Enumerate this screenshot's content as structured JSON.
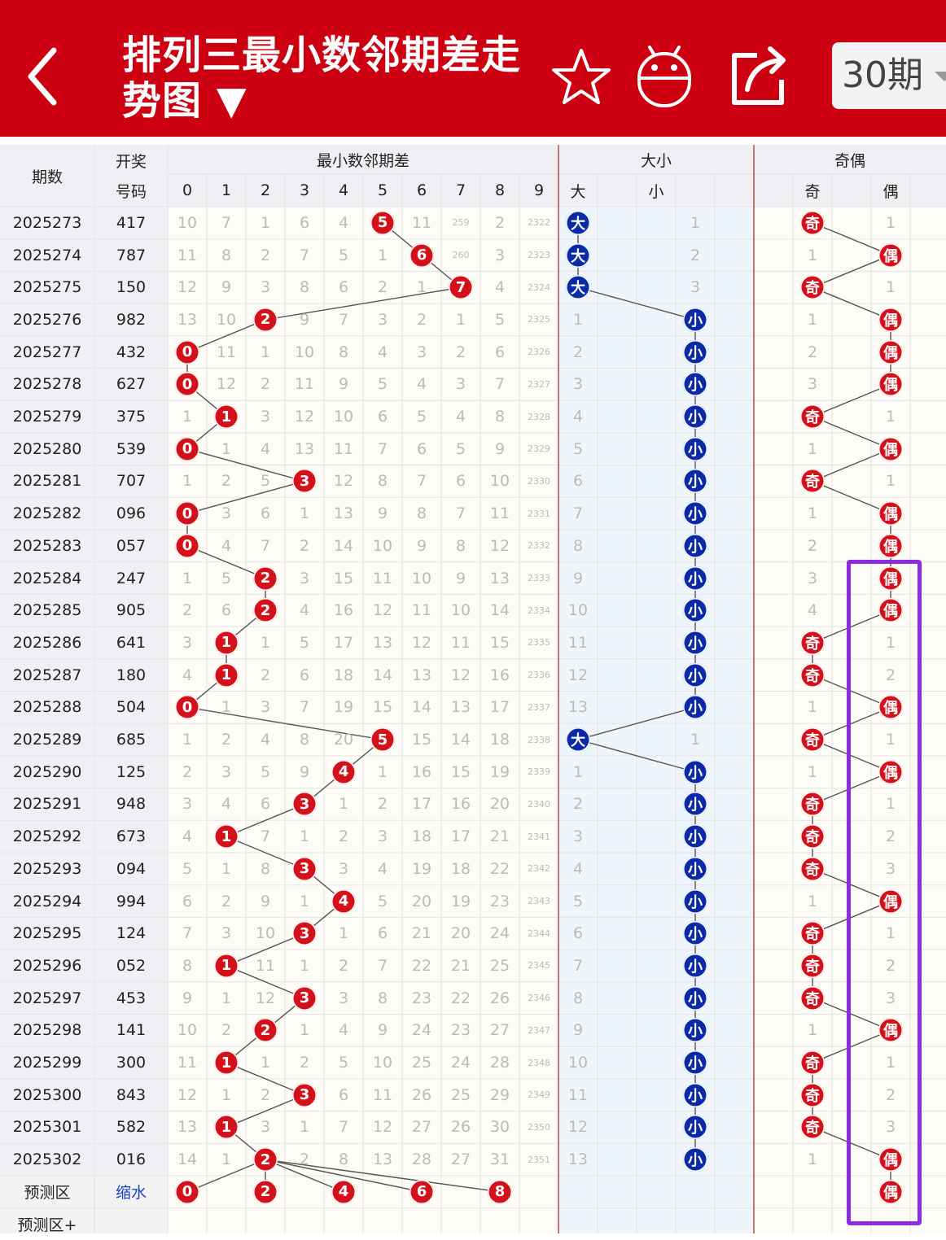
{
  "header": {
    "title": "排列三最小数邻期差走势图 ▼",
    "period_label": "30期",
    "icons": [
      "back-arrow-icon",
      "star-icon",
      "robot-icon",
      "share-icon",
      "chevron-down-icon"
    ]
  },
  "columns": {
    "period": "期数",
    "number_top": "开奖",
    "number_bottom": "号码",
    "section_diff": "最小数邻期差",
    "section_size": "大小",
    "section_parity": "奇偶",
    "digits": [
      "0",
      "1",
      "2",
      "3",
      "4",
      "5",
      "6",
      "7",
      "8",
      "9"
    ],
    "size": [
      "大",
      "小"
    ],
    "parity": [
      "奇",
      "偶"
    ]
  },
  "colors": {
    "header": "#cc0011",
    "ball_red": "#d4101a",
    "ball_blue": "#0b2aa8",
    "highlight": "#8b2be2"
  },
  "rows": [
    {
      "period": "2025273",
      "number": "417",
      "diff": [
        "10",
        "7",
        "1",
        "6",
        "4",
        "5",
        "11",
        "259",
        "2",
        "2322"
      ],
      "hit": 5,
      "size_cells": [
        "大",
        "1"
      ],
      "big": true,
      "parity_cells": [
        "奇",
        "1"
      ],
      "odd": true
    },
    {
      "period": "2025274",
      "number": "787",
      "diff": [
        "11",
        "8",
        "2",
        "7",
        "5",
        "1",
        "6",
        "260",
        "3",
        "2323"
      ],
      "hit": 6,
      "size_cells": [
        "大",
        "2"
      ],
      "big": true,
      "parity_cells": [
        "1",
        "偶"
      ],
      "odd": false
    },
    {
      "period": "2025275",
      "number": "150",
      "diff": [
        "12",
        "9",
        "3",
        "8",
        "6",
        "2",
        "1",
        "7",
        "4",
        "2324"
      ],
      "hit": 7,
      "size_cells": [
        "大",
        "3"
      ],
      "big": true,
      "parity_cells": [
        "奇",
        "1"
      ],
      "odd": true
    },
    {
      "period": "2025276",
      "number": "982",
      "diff": [
        "13",
        "10",
        "2",
        "9",
        "7",
        "3",
        "2",
        "1",
        "5",
        "2325"
      ],
      "hit": 2,
      "size_cells": [
        "1",
        "小"
      ],
      "big": false,
      "parity_cells": [
        "1",
        "偶"
      ],
      "odd": false
    },
    {
      "period": "2025277",
      "number": "432",
      "diff": [
        "0",
        "11",
        "1",
        "10",
        "8",
        "4",
        "3",
        "2",
        "6",
        "2326"
      ],
      "hit": 0,
      "size_cells": [
        "2",
        "小"
      ],
      "big": false,
      "parity_cells": [
        "2",
        "偶"
      ],
      "odd": false
    },
    {
      "period": "2025278",
      "number": "627",
      "diff": [
        "0",
        "12",
        "2",
        "11",
        "9",
        "5",
        "4",
        "3",
        "7",
        "2327"
      ],
      "hit": 0,
      "size_cells": [
        "3",
        "小"
      ],
      "big": false,
      "parity_cells": [
        "3",
        "偶"
      ],
      "odd": false
    },
    {
      "period": "2025279",
      "number": "375",
      "diff": [
        "1",
        "1",
        "3",
        "12",
        "10",
        "6",
        "5",
        "4",
        "8",
        "2328"
      ],
      "hit": 1,
      "size_cells": [
        "4",
        "小"
      ],
      "big": false,
      "parity_cells": [
        "奇",
        "1"
      ],
      "odd": true
    },
    {
      "period": "2025280",
      "number": "539",
      "diff": [
        "0",
        "1",
        "4",
        "13",
        "11",
        "7",
        "6",
        "5",
        "9",
        "2329"
      ],
      "hit": 0,
      "size_cells": [
        "5",
        "小"
      ],
      "big": false,
      "parity_cells": [
        "1",
        "偶"
      ],
      "odd": false
    },
    {
      "period": "2025281",
      "number": "707",
      "diff": [
        "1",
        "2",
        "5",
        "3",
        "12",
        "8",
        "7",
        "6",
        "10",
        "2330"
      ],
      "hit": 3,
      "size_cells": [
        "6",
        "小"
      ],
      "big": false,
      "parity_cells": [
        "奇",
        "1"
      ],
      "odd": true
    },
    {
      "period": "2025282",
      "number": "096",
      "diff": [
        "0",
        "3",
        "6",
        "1",
        "13",
        "9",
        "8",
        "7",
        "11",
        "2331"
      ],
      "hit": 0,
      "size_cells": [
        "7",
        "小"
      ],
      "big": false,
      "parity_cells": [
        "1",
        "偶"
      ],
      "odd": false
    },
    {
      "period": "2025283",
      "number": "057",
      "diff": [
        "0",
        "4",
        "7",
        "2",
        "14",
        "10",
        "9",
        "8",
        "12",
        "2332"
      ],
      "hit": 0,
      "size_cells": [
        "8",
        "小"
      ],
      "big": false,
      "parity_cells": [
        "2",
        "偶"
      ],
      "odd": false
    },
    {
      "period": "2025284",
      "number": "247",
      "diff": [
        "1",
        "5",
        "2",
        "3",
        "15",
        "11",
        "10",
        "9",
        "13",
        "2333"
      ],
      "hit": 2,
      "size_cells": [
        "9",
        "小"
      ],
      "big": false,
      "parity_cells": [
        "3",
        "偶"
      ],
      "odd": false
    },
    {
      "period": "2025285",
      "number": "905",
      "diff": [
        "2",
        "6",
        "2",
        "4",
        "16",
        "12",
        "11",
        "10",
        "14",
        "2334"
      ],
      "hit": 2,
      "size_cells": [
        "10",
        "小"
      ],
      "big": false,
      "parity_cells": [
        "4",
        "偶"
      ],
      "odd": false
    },
    {
      "period": "2025286",
      "number": "641",
      "diff": [
        "3",
        "1",
        "1",
        "5",
        "17",
        "13",
        "12",
        "11",
        "15",
        "2335"
      ],
      "hit": 1,
      "size_cells": [
        "11",
        "小"
      ],
      "big": false,
      "parity_cells": [
        "奇",
        "1"
      ],
      "odd": true
    },
    {
      "period": "2025287",
      "number": "180",
      "diff": [
        "4",
        "1",
        "2",
        "6",
        "18",
        "14",
        "13",
        "12",
        "16",
        "2336"
      ],
      "hit": 1,
      "size_cells": [
        "12",
        "小"
      ],
      "big": false,
      "parity_cells": [
        "奇",
        "2"
      ],
      "odd": true
    },
    {
      "period": "2025288",
      "number": "504",
      "diff": [
        "0",
        "1",
        "3",
        "7",
        "19",
        "15",
        "14",
        "13",
        "17",
        "2337"
      ],
      "hit": 0,
      "size_cells": [
        "13",
        "小"
      ],
      "big": false,
      "parity_cells": [
        "1",
        "偶"
      ],
      "odd": false
    },
    {
      "period": "2025289",
      "number": "685",
      "diff": [
        "1",
        "2",
        "4",
        "8",
        "20",
        "5",
        "15",
        "14",
        "18",
        "2338"
      ],
      "hit": 5,
      "size_cells": [
        "大",
        "1"
      ],
      "big": true,
      "parity_cells": [
        "奇",
        "1"
      ],
      "odd": true
    },
    {
      "period": "2025290",
      "number": "125",
      "diff": [
        "2",
        "3",
        "5",
        "9",
        "4",
        "1",
        "16",
        "15",
        "19",
        "2339"
      ],
      "hit": 4,
      "size_cells": [
        "1",
        "小"
      ],
      "big": false,
      "parity_cells": [
        "1",
        "偶"
      ],
      "odd": false
    },
    {
      "period": "2025291",
      "number": "948",
      "diff": [
        "3",
        "4",
        "6",
        "3",
        "1",
        "2",
        "17",
        "16",
        "20",
        "2340"
      ],
      "hit": 3,
      "size_cells": [
        "2",
        "小"
      ],
      "big": false,
      "parity_cells": [
        "奇",
        "1"
      ],
      "odd": true
    },
    {
      "period": "2025292",
      "number": "673",
      "diff": [
        "4",
        "1",
        "7",
        "1",
        "2",
        "3",
        "18",
        "17",
        "21",
        "2341"
      ],
      "hit": 1,
      "size_cells": [
        "3",
        "小"
      ],
      "big": false,
      "parity_cells": [
        "奇",
        "2"
      ],
      "odd": true
    },
    {
      "period": "2025293",
      "number": "094",
      "diff": [
        "5",
        "1",
        "8",
        "3",
        "3",
        "4",
        "19",
        "18",
        "22",
        "2342"
      ],
      "hit": 3,
      "size_cells": [
        "4",
        "小"
      ],
      "big": false,
      "parity_cells": [
        "奇",
        "3"
      ],
      "odd": true
    },
    {
      "period": "2025294",
      "number": "994",
      "diff": [
        "6",
        "2",
        "9",
        "1",
        "4",
        "5",
        "20",
        "19",
        "23",
        "2343"
      ],
      "hit": 4,
      "size_cells": [
        "5",
        "小"
      ],
      "big": false,
      "parity_cells": [
        "1",
        "偶"
      ],
      "odd": false
    },
    {
      "period": "2025295",
      "number": "124",
      "diff": [
        "7",
        "3",
        "10",
        "3",
        "1",
        "6",
        "21",
        "20",
        "24",
        "2344"
      ],
      "hit": 3,
      "size_cells": [
        "6",
        "小"
      ],
      "big": false,
      "parity_cells": [
        "奇",
        "1"
      ],
      "odd": true
    },
    {
      "period": "2025296",
      "number": "052",
      "diff": [
        "8",
        "1",
        "11",
        "1",
        "2",
        "7",
        "22",
        "21",
        "25",
        "2345"
      ],
      "hit": 1,
      "size_cells": [
        "7",
        "小"
      ],
      "big": false,
      "parity_cells": [
        "奇",
        "2"
      ],
      "odd": true
    },
    {
      "period": "2025297",
      "number": "453",
      "diff": [
        "9",
        "1",
        "12",
        "3",
        "3",
        "8",
        "23",
        "22",
        "26",
        "2346"
      ],
      "hit": 3,
      "size_cells": [
        "8",
        "小"
      ],
      "big": false,
      "parity_cells": [
        "奇",
        "3"
      ],
      "odd": true
    },
    {
      "period": "2025298",
      "number": "141",
      "diff": [
        "10",
        "2",
        "2",
        "1",
        "4",
        "9",
        "24",
        "23",
        "27",
        "2347"
      ],
      "hit": 2,
      "size_cells": [
        "9",
        "小"
      ],
      "big": false,
      "parity_cells": [
        "1",
        "偶"
      ],
      "odd": false
    },
    {
      "period": "2025299",
      "number": "300",
      "diff": [
        "11",
        "1",
        "1",
        "2",
        "5",
        "10",
        "25",
        "24",
        "28",
        "2348"
      ],
      "hit": 1,
      "size_cells": [
        "10",
        "小"
      ],
      "big": false,
      "parity_cells": [
        "奇",
        "1"
      ],
      "odd": true
    },
    {
      "period": "2025300",
      "number": "843",
      "diff": [
        "12",
        "1",
        "2",
        "3",
        "6",
        "11",
        "26",
        "25",
        "29",
        "2349"
      ],
      "hit": 3,
      "size_cells": [
        "11",
        "小"
      ],
      "big": false,
      "parity_cells": [
        "奇",
        "2"
      ],
      "odd": true
    },
    {
      "period": "2025301",
      "number": "582",
      "diff": [
        "13",
        "1",
        "3",
        "1",
        "7",
        "12",
        "27",
        "26",
        "30",
        "2350"
      ],
      "hit": 1,
      "size_cells": [
        "12",
        "小"
      ],
      "big": false,
      "parity_cells": [
        "奇",
        "3"
      ],
      "odd": true
    },
    {
      "period": "2025302",
      "number": "016",
      "diff": [
        "14",
        "1",
        "2",
        "2",
        "8",
        "13",
        "28",
        "27",
        "31",
        "2351"
      ],
      "hit": 2,
      "size_cells": [
        "13",
        "小"
      ],
      "big": false,
      "parity_cells": [
        "1",
        "偶"
      ],
      "odd": false
    }
  ],
  "forecast": {
    "label": "预测区",
    "tag": "缩水",
    "balls": [
      "0",
      "2",
      "4",
      "6",
      "8"
    ],
    "ball_cols": [
      0,
      2,
      4,
      6,
      8
    ],
    "parity_ball": "偶"
  },
  "forecast_plus": {
    "label": "预测区+"
  }
}
